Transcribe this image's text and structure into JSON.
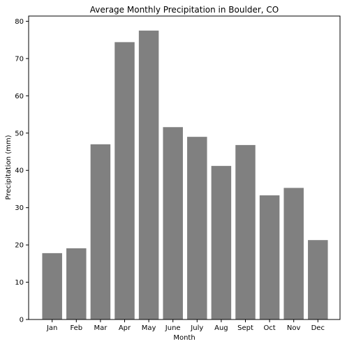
{
  "chart_data": {
    "type": "bar",
    "title": "Average Monthly Precipitation in Boulder, CO",
    "xlabel": "Month",
    "ylabel": "Precipitation (mm)",
    "categories": [
      "Jan",
      "Feb",
      "Mar",
      "Apr",
      "May",
      "June",
      "July",
      "Aug",
      "Sept",
      "Oct",
      "Nov",
      "Dec"
    ],
    "values": [
      17.8,
      19.1,
      47.0,
      74.4,
      77.5,
      51.6,
      49.0,
      41.2,
      46.8,
      33.3,
      35.3,
      21.3
    ],
    "ylim": [
      0,
      81.4
    ],
    "yticks": [
      0,
      10,
      20,
      30,
      40,
      50,
      60,
      70,
      80
    ],
    "bar_color": "#808080",
    "grid": false,
    "legend": "none"
  }
}
